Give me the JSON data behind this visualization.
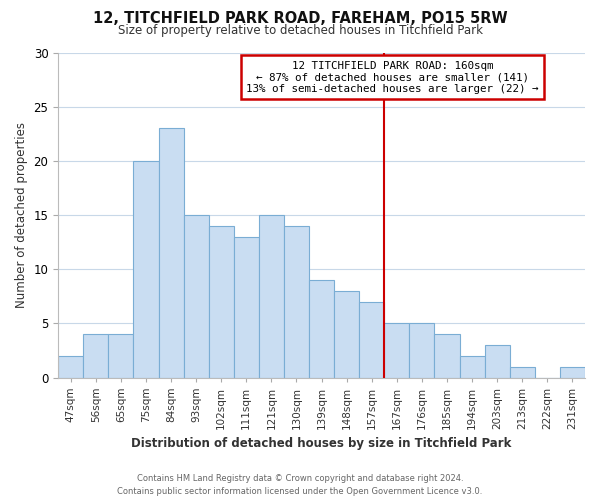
{
  "title": "12, TITCHFIELD PARK ROAD, FAREHAM, PO15 5RW",
  "subtitle": "Size of property relative to detached houses in Titchfield Park",
  "xlabel": "Distribution of detached houses by size in Titchfield Park",
  "ylabel": "Number of detached properties",
  "categories": [
    "47sqm",
    "56sqm",
    "65sqm",
    "75sqm",
    "84sqm",
    "93sqm",
    "102sqm",
    "111sqm",
    "121sqm",
    "130sqm",
    "139sqm",
    "148sqm",
    "157sqm",
    "167sqm",
    "176sqm",
    "185sqm",
    "194sqm",
    "203sqm",
    "213sqm",
    "222sqm",
    "231sqm"
  ],
  "values": [
    2,
    4,
    4,
    20,
    23,
    15,
    14,
    13,
    15,
    14,
    9,
    8,
    7,
    5,
    5,
    4,
    2,
    3,
    1,
    0,
    1
  ],
  "bar_color": "#c9ddf2",
  "bar_edge_color": "#7aadd4",
  "reference_line_color": "#cc0000",
  "ylim": [
    0,
    30
  ],
  "yticks": [
    0,
    5,
    10,
    15,
    20,
    25,
    30
  ],
  "annotation_title": "12 TITCHFIELD PARK ROAD: 160sqm",
  "annotation_line1": "← 87% of detached houses are smaller (141)",
  "annotation_line2": "13% of semi-detached houses are larger (22) →",
  "annotation_box_facecolor": "#ffffff",
  "annotation_box_edgecolor": "#cc0000",
  "footer_line1": "Contains HM Land Registry data © Crown copyright and database right 2024.",
  "footer_line2": "Contains public sector information licensed under the Open Government Licence v3.0.",
  "background_color": "#ffffff",
  "grid_color": "#c8d8e8"
}
